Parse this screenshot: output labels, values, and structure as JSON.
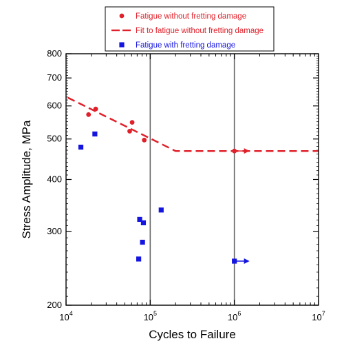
{
  "chart_data": {
    "type": "scatter",
    "x_scale": "log",
    "y_scale": "log",
    "xlim": [
      10000,
      10000000
    ],
    "ylim": [
      200,
      800
    ],
    "xlabel": "Cycles to Failure",
    "ylabel": "Stress Amplitude, MPa",
    "x_ticks": [
      {
        "value": 10000,
        "base": "10",
        "exp": "4"
      },
      {
        "value": 100000,
        "base": "10",
        "exp": "5"
      },
      {
        "value": 1000000,
        "base": "10",
        "exp": "6"
      },
      {
        "value": 10000000,
        "base": "10",
        "exp": "7"
      }
    ],
    "y_ticks": [
      {
        "value": 200,
        "label": "200"
      },
      {
        "value": 300,
        "label": "300"
      },
      {
        "value": 400,
        "label": "400"
      },
      {
        "value": 500,
        "label": "500"
      },
      {
        "value": 600,
        "label": "600"
      },
      {
        "value": 700,
        "label": "700"
      },
      {
        "value": 800,
        "label": "800"
      }
    ],
    "vertical_reference_lines": [
      100000,
      1000000
    ],
    "legend_position": "top-center",
    "series": [
      {
        "name": "Fatigue without fretting damage",
        "kind": "points",
        "marker": "circle",
        "color": "#e0202a",
        "points": [
          {
            "x": 18500,
            "y": 572
          },
          {
            "x": 22500,
            "y": 590
          },
          {
            "x": 57000,
            "y": 522
          },
          {
            "x": 61000,
            "y": 548
          },
          {
            "x": 85000,
            "y": 497
          },
          {
            "x": 1000000,
            "y": 468,
            "runout": true
          }
        ]
      },
      {
        "name": "Fit to fatigue without fretting damage",
        "kind": "line",
        "dash": true,
        "color": "#e0202a",
        "points": [
          {
            "x": 10500,
            "y": 628
          },
          {
            "x": 200000,
            "y": 468
          },
          {
            "x": 10000000,
            "y": 468
          }
        ]
      },
      {
        "name": "Fatigue with fretting damage",
        "kind": "points",
        "marker": "square",
        "color": "#1515e0",
        "points": [
          {
            "x": 15000,
            "y": 478
          },
          {
            "x": 22000,
            "y": 514
          },
          {
            "x": 73000,
            "y": 258
          },
          {
            "x": 75000,
            "y": 321
          },
          {
            "x": 81000,
            "y": 283
          },
          {
            "x": 83000,
            "y": 315
          },
          {
            "x": 135000,
            "y": 338
          },
          {
            "x": 1000000,
            "y": 255,
            "runout": true
          }
        ]
      }
    ]
  }
}
